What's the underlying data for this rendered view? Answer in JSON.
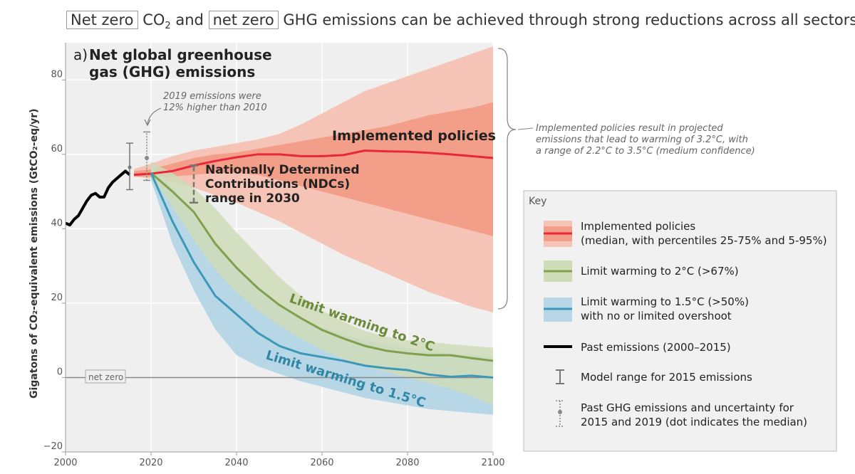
{
  "headline": {
    "pre_box": "Net zero",
    "mid1": "CO",
    "mid_sub": "2",
    "mid2": "and",
    "box2": "net zero",
    "rest": "GHG emissions can be achieved through strong reductions across all sectors"
  },
  "chart_data": {
    "type": "area",
    "panel_label": "a)",
    "title_line1": "Net global greenhouse",
    "title_line2": "gas (GHG) emissions",
    "ylabel": "Gigatons of CO₂-equivalent emissions (GtCO₂-eq/yr)",
    "xlim": [
      2000,
      2100
    ],
    "ylim": [
      -20,
      90
    ],
    "x_ticks": [
      2000,
      2020,
      2040,
      2060,
      2080,
      2100
    ],
    "y_ticks": [
      -20,
      0,
      20,
      40,
      60,
      80
    ],
    "y_tick_labels": [
      "−20",
      "0",
      "20",
      "40",
      "60",
      "80"
    ],
    "grid": true,
    "zero_line_label": "net zero",
    "series": [
      {
        "name": "Past emissions (2000–2015)",
        "color": "#000000",
        "x": [
          2000,
          2001,
          2002,
          2003,
          2004,
          2005,
          2006,
          2007,
          2008,
          2009,
          2010,
          2011,
          2012,
          2013,
          2014,
          2015
        ],
        "values": [
          41.5,
          41,
          42.5,
          43.5,
          45.5,
          47.5,
          49,
          49.5,
          48.5,
          48.5,
          51,
          52.5,
          53.5,
          54.5,
          55.5,
          54.5
        ]
      },
      {
        "name": "Implemented policies",
        "color": "#e8283a",
        "x": [
          2016,
          2020,
          2025,
          2030,
          2035,
          2040,
          2045,
          2050,
          2055,
          2060,
          2065,
          2070,
          2075,
          2080,
          2085,
          2090,
          2095,
          2100
        ],
        "values": [
          54.5,
          54.8,
          55.5,
          57,
          58.2,
          59.2,
          60,
          60,
          59.5,
          59.5,
          59.8,
          61,
          60.8,
          60.7,
          60.4,
          60,
          59.5,
          59
        ],
        "p25": [
          54,
          54,
          54,
          54.5,
          55,
          55,
          54.5,
          53,
          51.5,
          50,
          48.5,
          47,
          45.5,
          44,
          42.5,
          41,
          39.5,
          38
        ],
        "p75": [
          55.5,
          56,
          57.5,
          59,
          60,
          60.5,
          61.5,
          62.5,
          63.5,
          64.5,
          65.5,
          66.5,
          67.5,
          69,
          70.5,
          71.5,
          72.5,
          74
        ],
        "p5": [
          54,
          53.5,
          52.5,
          51,
          49,
          47,
          44.5,
          42,
          39,
          36,
          33,
          30.5,
          28,
          25.5,
          23,
          21,
          19,
          17.5
        ],
        "p95": [
          56,
          57.5,
          59.5,
          61,
          62,
          63,
          64,
          65.5,
          68,
          71,
          74,
          77,
          79,
          81,
          83,
          85,
          87,
          89
        ]
      },
      {
        "name": "Limit warming to 2°C (>67%)",
        "color": "#80a04e",
        "x": [
          2020,
          2025,
          2030,
          2035,
          2040,
          2045,
          2050,
          2055,
          2060,
          2065,
          2070,
          2075,
          2080,
          2085,
          2090,
          2095,
          2100
        ],
        "values": [
          55,
          50,
          44.5,
          36,
          29.5,
          24,
          19.5,
          16,
          12.8,
          10.5,
          8.5,
          7.2,
          6.5,
          6,
          6,
          5.2,
          4.5
        ],
        "low": [
          54.5,
          46,
          37,
          29,
          23,
          18,
          14,
          10.5,
          7.5,
          5,
          3,
          1.5,
          0,
          -1.5,
          -3,
          -5,
          -7.5
        ],
        "high": [
          58,
          55,
          51,
          45.5,
          39,
          33,
          27,
          22,
          18,
          15,
          12.5,
          11,
          10,
          9.5,
          9,
          8.5,
          8
        ]
      },
      {
        "name": "Limit warming to 1.5°C (>50%) with no or limited overshoot",
        "color": "#3d98b8",
        "x": [
          2020,
          2025,
          2030,
          2035,
          2040,
          2045,
          2050,
          2055,
          2060,
          2065,
          2070,
          2075,
          2080,
          2085,
          2090,
          2095,
          2100
        ],
        "values": [
          55,
          42,
          31,
          22,
          17,
          12,
          8.5,
          6.5,
          5.5,
          4.5,
          3.2,
          2.5,
          2,
          0.8,
          0.2,
          0.5,
          0
        ],
        "low": [
          53,
          36,
          23.5,
          13,
          6,
          3,
          1,
          -1,
          -2.5,
          -4,
          -5.5,
          -6.5,
          -7.5,
          -8.5,
          -9,
          -9.5,
          -10
        ],
        "high": [
          57,
          51,
          43.5,
          36.5,
          30,
          24.5,
          20,
          16,
          13.5,
          11.5,
          10,
          9,
          8,
          7,
          6.5,
          6,
          5.5
        ]
      }
    ],
    "model_range_2015": {
      "x": 2015,
      "low": 50.5,
      "high": 63,
      "median": 56.5
    },
    "uncertainty_2019": {
      "x": 2019,
      "low": 53,
      "high": 66,
      "median": 59
    },
    "ndc_2030": {
      "x": 2030,
      "low": 47,
      "high": 57
    },
    "annotations": {
      "emissions_2019_line1": "2019 emissions were",
      "emissions_2019_line2": "12% higher than 2010",
      "ndc_line1": "Nationally Determined",
      "ndc_line2": "Contributions (NDCs)",
      "ndc_line3": "range in 2030",
      "implemented_label": "Implemented policies",
      "label_2c": "Limit warming to 2°C",
      "label_15c": "Limit warming to 1.5°C",
      "bracket_line1": "Implemented policies result in projected",
      "bracket_line2": "emissions that lead to warming of 3.2°C, with",
      "bracket_line3": "a range of 2.2°C to 3.5°C (medium confidence)"
    },
    "legend": {
      "title": "Key",
      "items": [
        {
          "line1": "Implemented policies",
          "line2": "(median, with percentiles 25-75% and 5-95%)"
        },
        {
          "line1": "Limit warming to 2°C (>67%)",
          "line2": ""
        },
        {
          "line1": "Limit warming to 1.5°C (>50%)",
          "line2": "with no or limited overshoot"
        },
        {
          "line1": "Past emissions (2000–2015)",
          "line2": ""
        },
        {
          "line1": "Model range for 2015 emissions",
          "line2": ""
        },
        {
          "line1": "Past GHG emissions and uncertainty for",
          "line2": "2015 and 2019 (dot indicates the median)"
        }
      ]
    },
    "colors": {
      "implemented_95": "#f5c4b6",
      "implemented_75": "#f29e88",
      "green_band": "#cfdcb8",
      "blue_band": "#b7d7e6",
      "grid": "#ffffff",
      "plot_bg": "#efefef",
      "key_bg": "#f1f1f1"
    }
  }
}
